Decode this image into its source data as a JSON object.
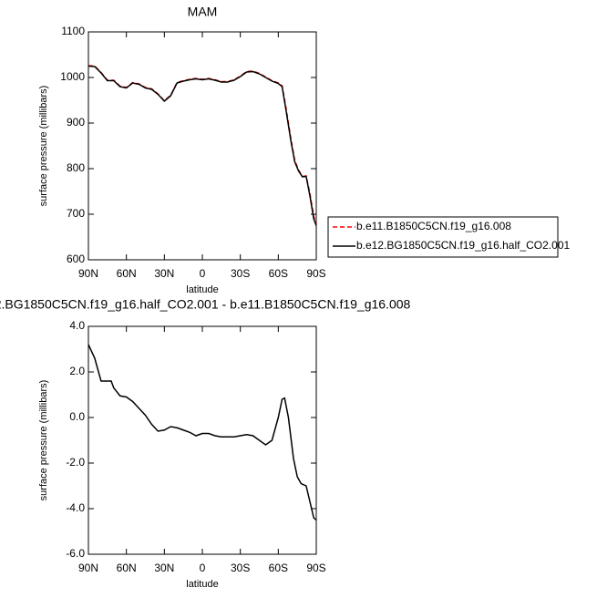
{
  "chart_data": [
    {
      "type": "line",
      "title": "MAM",
      "x_label": "latitude",
      "y_label": "surface pressure (millibars)",
      "x": [
        90,
        85,
        80,
        75,
        70,
        65,
        60,
        55,
        50,
        45,
        40,
        35,
        30,
        25,
        20,
        15,
        10,
        5,
        0,
        -5,
        -10,
        -15,
        -20,
        -25,
        -30,
        -35,
        -40,
        -45,
        -50,
        -55,
        -60,
        -63,
        -66,
        -70,
        -73,
        -76,
        -79,
        -82,
        -85,
        -88,
        -90
      ],
      "series": [
        {
          "name": "b.e11.B1850C5CN.f19_g16.008",
          "color": "#ff0000",
          "style": "dashed",
          "values": [
            1026,
            1025,
            1011,
            994,
            994,
            981,
            978,
            989,
            986,
            978,
            975,
            964,
            949,
            961,
            989,
            993,
            996,
            998,
            996,
            998,
            995,
            991,
            991,
            995,
            1003,
            1013,
            1014,
            1009,
            1001,
            993,
            988,
            982,
            935,
            865,
            818,
            797,
            783,
            784,
            745,
            695,
            678
          ]
        },
        {
          "name": "b.e12.BG1850C5CN.f19_g16.half_CO2.001",
          "color": "#000000",
          "style": "solid",
          "values": [
            1025,
            1024,
            1010,
            993,
            993,
            980,
            977,
            988,
            985,
            977,
            974,
            963,
            948,
            960,
            988,
            992,
            995,
            997,
            995,
            997,
            994,
            990,
            990,
            994,
            1002,
            1012,
            1013,
            1008,
            1000,
            992,
            987,
            980,
            930,
            860,
            815,
            795,
            782,
            783,
            740,
            690,
            675
          ]
        }
      ],
      "xlim": [
        90,
        -90
      ],
      "xticks": [
        {
          "value": 90,
          "label": "90N"
        },
        {
          "value": 60,
          "label": "60N"
        },
        {
          "value": 30,
          "label": "30N"
        },
        0,
        {
          "value": -30,
          "label": "30S"
        },
        {
          "value": -60,
          "label": "60S"
        },
        {
          "value": -90,
          "label": "90S"
        }
      ],
      "ylim": [
        600,
        1100
      ],
      "yticks": [
        600,
        700,
        800,
        900,
        1000,
        1100
      ],
      "legend": "outside-right"
    },
    {
      "type": "line",
      "title": "2.BG1850C5CN.f19_g16.half_CO2.001 - b.e11.B1850C5CN.f19_g16.008",
      "x_label": "latitude",
      "y_label": "surface pressure (millibars)",
      "x": [
        90,
        85,
        80,
        75,
        72,
        70,
        65,
        60,
        55,
        50,
        45,
        40,
        35,
        30,
        25,
        20,
        15,
        10,
        5,
        0,
        -5,
        -10,
        -15,
        -20,
        -25,
        -30,
        -35,
        -40,
        -45,
        -50,
        -55,
        -60,
        -63,
        -65,
        -68,
        -72,
        -75,
        -78,
        -82,
        -85,
        -88,
        -90
      ],
      "values": [
        3.2,
        2.6,
        1.6,
        1.6,
        1.6,
        1.3,
        0.95,
        0.9,
        0.7,
        0.4,
        0.1,
        -0.3,
        -0.6,
        -0.55,
        -0.4,
        -0.45,
        -0.55,
        -0.65,
        -0.8,
        -0.7,
        -0.7,
        -0.8,
        -0.85,
        -0.85,
        -0.85,
        -0.8,
        -0.75,
        -0.8,
        -1.0,
        -1.2,
        -1.0,
        0.0,
        0.8,
        0.85,
        0.0,
        -1.8,
        -2.6,
        -2.9,
        -3.0,
        -3.7,
        -4.4,
        -4.5
      ],
      "color": "#000000",
      "xlim": [
        90,
        -90
      ],
      "xticks": [
        {
          "value": 90,
          "label": "90N"
        },
        {
          "value": 60,
          "label": "60N"
        },
        {
          "value": 30,
          "label": "30N"
        },
        0,
        {
          "value": -30,
          "label": "30S"
        },
        {
          "value": -60,
          "label": "60S"
        },
        {
          "value": -90,
          "label": "90S"
        }
      ],
      "ylim": [
        -6,
        4
      ],
      "yticks": [
        {
          "value": -6,
          "label": "-6.0"
        },
        {
          "value": -4,
          "label": "-4.0"
        },
        {
          "value": -2,
          "label": "-2.0"
        },
        {
          "value": 0,
          "label": "0.0"
        },
        {
          "value": 2,
          "label": "2.0"
        },
        {
          "value": 4,
          "label": "4.0"
        }
      ]
    }
  ]
}
